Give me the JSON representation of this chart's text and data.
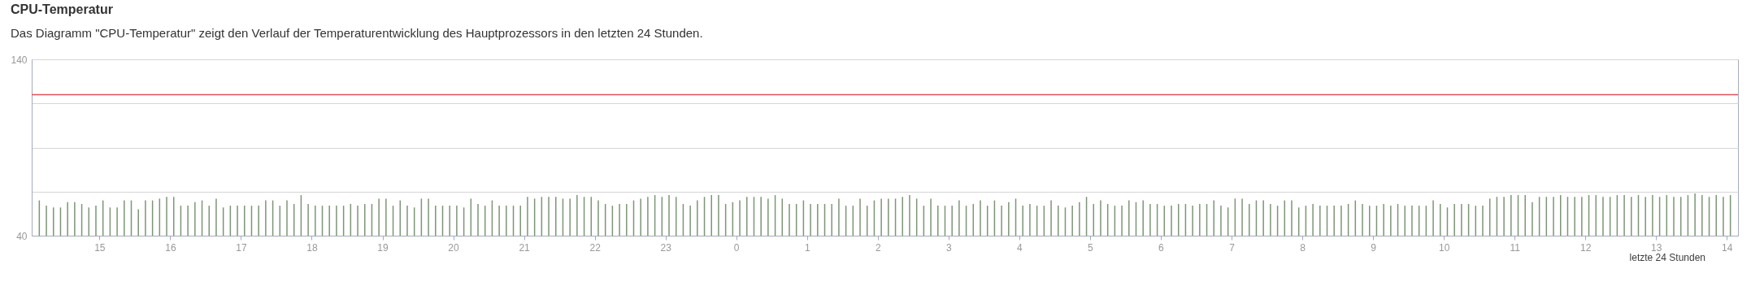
{
  "chart_data": {
    "type": "bar",
    "title": "CPU-Temperatur",
    "subtitle": "Das Diagramm \"CPU-Temperatur\" zeigt den Verlauf der Temperaturentwicklung des Hauptprozessors in den letzten 24 Stunden.",
    "annotations": [
      "letzte 24 Stunden"
    ],
    "x": [
      "--01-01T14:09",
      "--01-01T14:15",
      "--01-01T14:21",
      "--01-01T14:27",
      "--01-01T14:33",
      "--01-01T14:39",
      "--01-01T14:45",
      "--01-01T14:51",
      "--01-01T14:57",
      "--01-01T15:03",
      "--01-01T15:09",
      "--01-01T15:15",
      "--01-01T15:21",
      "--01-01T15:27",
      "--01-01T15:33",
      "--01-01T15:39",
      "--01-01T15:45",
      "--01-01T15:51",
      "--01-01T15:57",
      "--01-01T16:03",
      "--01-01T16:09",
      "--01-01T16:15",
      "--01-01T16:21",
      "--01-01T16:27",
      "--01-01T16:33",
      "--01-01T16:39",
      "--01-01T16:45",
      "--01-01T16:51",
      "--01-01T16:57",
      "--01-01T17:03",
      "--01-01T17:09",
      "--01-01T17:15",
      "--01-01T17:21",
      "--01-01T17:27",
      "--01-01T17:33",
      "--01-01T17:39",
      "--01-01T17:45",
      "--01-01T17:51",
      "--01-01T17:57",
      "--01-01T18:03",
      "--01-01T18:09",
      "--01-01T18:15",
      "--01-01T18:21",
      "--01-01T18:27",
      "--01-01T18:33",
      "--01-01T18:39",
      "--01-01T18:45",
      "--01-01T18:51",
      "--01-01T18:57",
      "--01-01T19:03",
      "--01-01T19:09",
      "--01-01T19:15",
      "--01-01T19:21",
      "--01-01T19:27",
      "--01-01T19:33",
      "--01-01T19:39",
      "--01-01T19:45",
      "--01-01T19:51",
      "--01-01T19:57",
      "--01-01T20:03",
      "--01-01T20:09",
      "--01-01T20:15",
      "--01-01T20:21",
      "--01-01T20:27",
      "--01-01T20:33",
      "--01-01T20:39",
      "--01-01T20:45",
      "--01-01T20:51",
      "--01-01T20:57",
      "--01-01T21:03",
      "--01-01T21:09",
      "--01-01T21:15",
      "--01-01T21:21",
      "--01-01T21:27",
      "--01-01T21:33",
      "--01-01T21:39",
      "--01-01T21:45",
      "--01-01T21:51",
      "--01-01T21:57",
      "--01-01T22:03",
      "--01-01T22:09",
      "--01-01T22:15",
      "--01-01T22:21",
      "--01-01T22:27",
      "--01-01T22:33",
      "--01-01T22:39",
      "--01-01T22:45",
      "--01-01T22:51",
      "--01-01T22:57",
      "--01-01T23:03",
      "--01-01T23:09",
      "--01-01T23:15",
      "--01-01T23:21",
      "--01-01T23:27",
      "--01-01T23:33",
      "--01-01T23:39",
      "--01-01T23:45",
      "--01-01T23:51",
      "--01-01T23:57",
      "--01-02T00:03",
      "--01-02T00:09",
      "--01-02T00:15",
      "--01-02T00:21",
      "--01-02T00:27",
      "--01-02T00:33",
      "--01-02T00:39",
      "--01-02T00:45",
      "--01-02T00:51",
      "--01-02T00:57",
      "--01-02T01:03",
      "--01-02T01:09",
      "--01-02T01:15",
      "--01-02T01:21",
      "--01-02T01:27",
      "--01-02T01:33",
      "--01-02T01:39",
      "--01-02T01:45",
      "--01-02T01:51",
      "--01-02T01:57",
      "--01-02T02:03",
      "--01-02T02:09",
      "--01-02T02:15",
      "--01-02T02:21",
      "--01-02T02:27",
      "--01-02T02:33",
      "--01-02T02:39",
      "--01-02T02:45",
      "--01-02T02:51",
      "--01-02T02:57",
      "--01-02T03:03",
      "--01-02T03:09",
      "--01-02T03:15",
      "--01-02T03:21",
      "--01-02T03:27",
      "--01-02T03:33",
      "--01-02T03:39",
      "--01-02T03:45",
      "--01-02T03:51",
      "--01-02T03:57",
      "--01-02T04:03",
      "--01-02T04:09",
      "--01-02T04:15",
      "--01-02T04:21",
      "--01-02T04:27",
      "--01-02T04:33",
      "--01-02T04:39",
      "--01-02T04:45",
      "--01-02T04:51",
      "--01-02T04:57",
      "--01-02T05:03",
      "--01-02T05:09",
      "--01-02T05:15",
      "--01-02T05:21",
      "--01-02T05:27",
      "--01-02T05:33",
      "--01-02T05:39",
      "--01-02T05:45",
      "--01-02T05:51",
      "--01-02T05:57",
      "--01-02T06:03",
      "--01-02T06:09",
      "--01-02T06:15",
      "--01-02T06:21",
      "--01-02T06:27",
      "--01-02T06:33",
      "--01-02T06:39",
      "--01-02T06:45",
      "--01-02T06:51",
      "--01-02T06:57",
      "--01-02T07:03",
      "--01-02T07:09",
      "--01-02T07:15",
      "--01-02T07:21",
      "--01-02T07:27",
      "--01-02T07:33",
      "--01-02T07:39",
      "--01-02T07:45",
      "--01-02T07:51",
      "--01-02T07:57",
      "--01-02T08:03",
      "--01-02T08:09",
      "--01-02T08:15",
      "--01-02T08:21",
      "--01-02T08:27",
      "--01-02T08:33",
      "--01-02T08:39",
      "--01-02T08:45",
      "--01-02T08:51",
      "--01-02T08:57",
      "--01-02T09:03",
      "--01-02T09:09",
      "--01-02T09:15",
      "--01-02T09:21",
      "--01-02T09:27",
      "--01-02T09:33",
      "--01-02T09:39",
      "--01-02T09:45",
      "--01-02T09:51",
      "--01-02T09:57",
      "--01-02T10:03",
      "--01-02T10:09",
      "--01-02T10:15",
      "--01-02T10:21",
      "--01-02T10:27",
      "--01-02T10:33",
      "--01-02T10:39",
      "--01-02T10:45",
      "--01-02T10:51",
      "--01-02T10:57",
      "--01-02T11:03",
      "--01-02T11:09",
      "--01-02T11:15",
      "--01-02T11:21",
      "--01-02T11:27",
      "--01-02T11:33",
      "--01-02T11:39",
      "--01-02T11:45",
      "--01-02T11:51",
      "--01-02T11:57",
      "--01-02T12:03",
      "--01-02T12:09",
      "--01-02T12:15",
      "--01-02T12:21",
      "--01-02T12:27",
      "--01-02T12:33",
      "--01-02T12:39",
      "--01-02T12:45",
      "--01-02T12:51",
      "--01-02T12:57",
      "--01-02T13:03",
      "--01-02T13:09",
      "--01-02T13:15",
      "--01-02T13:21",
      "--01-02T13:27",
      "--01-02T13:33",
      "--01-02T13:39",
      "--01-02T13:45",
      "--01-02T13:51",
      "--01-02T13:57",
      "--01-02T14:03"
    ],
    "values": [
      60,
      57,
      56,
      56,
      59,
      59,
      58,
      56,
      57,
      60,
      56,
      56,
      60,
      60,
      55,
      60,
      60,
      61,
      62,
      62,
      57,
      57,
      59,
      60,
      57,
      61,
      56,
      57,
      57,
      57,
      57,
      57,
      60,
      60,
      57,
      60,
      58,
      63,
      58,
      57,
      57,
      57,
      57,
      57,
      58,
      57,
      58,
      58,
      61,
      61,
      57,
      60,
      57,
      56,
      61,
      61,
      57,
      57,
      57,
      57,
      56,
      61,
      58,
      57,
      60,
      57,
      57,
      57,
      57,
      62,
      61,
      62,
      62,
      62,
      61,
      61,
      63,
      62,
      62,
      60,
      58,
      57,
      58,
      58,
      60,
      61,
      62,
      63,
      62,
      63,
      62,
      58,
      57,
      60,
      62,
      63,
      63,
      58,
      59,
      60,
      62,
      62,
      62,
      61,
      63,
      61,
      58,
      58,
      60,
      58,
      58,
      58,
      58,
      61,
      57,
      57,
      61,
      57,
      60,
      61,
      61,
      61,
      62,
      63,
      61,
      57,
      61,
      57,
      57,
      57,
      60,
      57,
      58,
      60,
      57,
      60,
      57,
      59,
      61,
      57,
      58,
      57,
      57,
      60,
      57,
      56,
      57,
      59,
      62,
      58,
      60,
      58,
      57,
      57,
      60,
      59,
      60,
      58,
      58,
      57,
      57,
      58,
      58,
      57,
      58,
      58,
      60,
      57,
      56,
      61,
      61,
      58,
      60,
      60,
      58,
      57,
      60,
      60,
      56,
      57,
      58,
      57,
      57,
      57,
      57,
      58,
      60,
      58,
      57,
      57,
      58,
      57,
      58,
      57,
      57,
      57,
      57,
      60,
      58,
      56,
      58,
      58,
      58,
      57,
      57,
      61,
      62,
      62,
      63,
      63,
      63,
      59,
      62,
      62,
      62,
      63,
      62,
      62,
      62,
      63,
      63,
      62,
      62,
      63,
      63,
      62,
      63,
      62,
      63,
      62,
      63,
      62,
      62,
      63,
      64,
      63,
      62,
      63,
      62,
      63
    ],
    "color": "#7d9577",
    "xlim": [
      "--01-01T14:06",
      "--01-02T14:06"
    ],
    "xticks": [
      {
        "value": "--01-01T15:00",
        "label": "15"
      },
      {
        "value": "--01-01T16:00",
        "label": "16"
      },
      {
        "value": "--01-01T17:00",
        "label": "17"
      },
      {
        "value": "--01-01T18:00",
        "label": "18"
      },
      {
        "value": "--01-01T19:00",
        "label": "19"
      },
      {
        "value": "--01-01T20:00",
        "label": "20"
      },
      {
        "value": "--01-01T21:00",
        "label": "21"
      },
      {
        "value": "--01-01T22:00",
        "label": "22"
      },
      {
        "value": "--01-01T23:00",
        "label": "23"
      },
      {
        "value": "--01-02T00:00",
        "label": "0"
      },
      {
        "value": "--01-02T01:00",
        "label": "1"
      },
      {
        "value": "--01-02T02:00",
        "label": "2"
      },
      {
        "value": "--01-02T03:00",
        "label": "3"
      },
      {
        "value": "--01-02T04:00",
        "label": "4"
      },
      {
        "value": "--01-02T05:00",
        "label": "5"
      },
      {
        "value": "--01-02T06:00",
        "label": "6"
      },
      {
        "value": "--01-02T07:00",
        "label": "7"
      },
      {
        "value": "--01-02T08:00",
        "label": "8"
      },
      {
        "value": "--01-02T09:00",
        "label": "9"
      },
      {
        "value": "--01-02T10:00",
        "label": "10"
      },
      {
        "value": "--01-02T11:00",
        "label": "11"
      },
      {
        "value": "--01-02T12:00",
        "label": "12"
      },
      {
        "value": "--01-02T13:00",
        "label": "13"
      },
      {
        "value": "--01-02T14:00",
        "label": "14"
      }
    ],
    "ylim": [
      40,
      140
    ],
    "yticks": [
      40,
      {
        "value": 65,
        "label": null
      },
      {
        "value": 90,
        "label": null
      },
      {
        "value": 115,
        "label": null
      },
      140
    ],
    "grid": "y",
    "ref_lines": [
      {
        "axis": "y",
        "value": 120,
        "color": "#e0505a"
      }
    ]
  }
}
